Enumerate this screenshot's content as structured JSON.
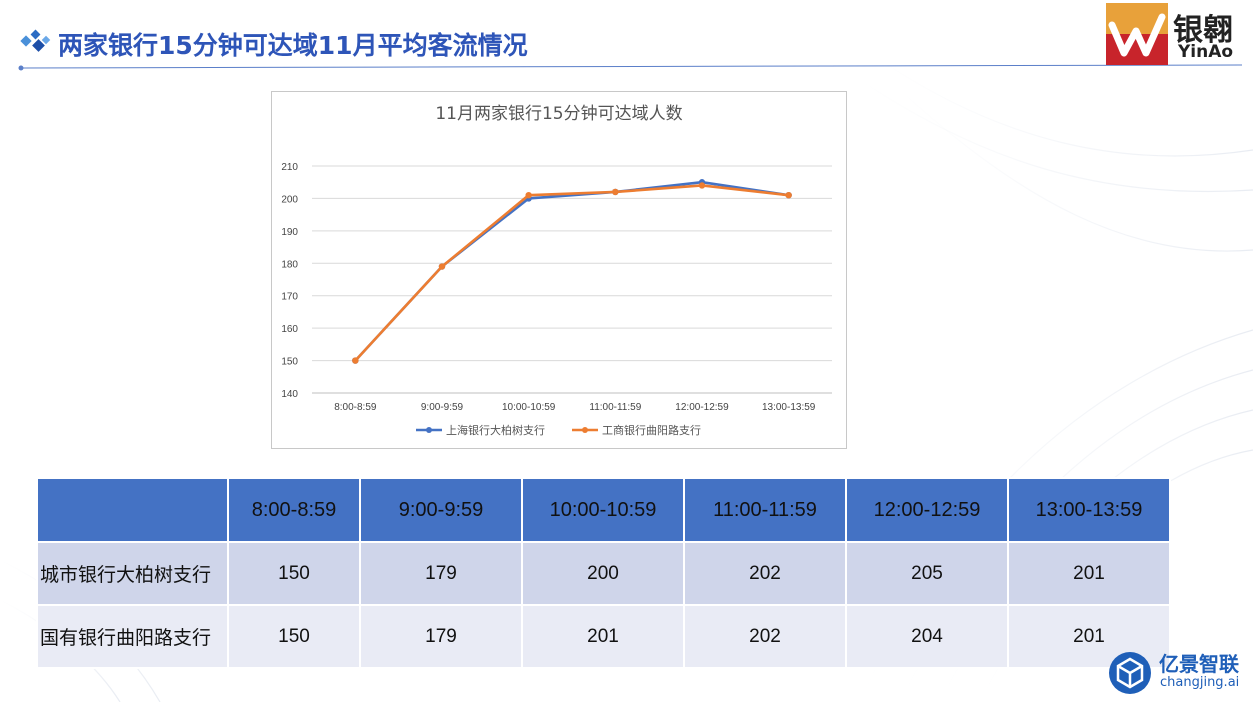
{
  "page": {
    "title": "两家银行15分钟可达域11月平均客流情况"
  },
  "logo_top": {
    "cn": "银翱",
    "en": "YinAo"
  },
  "logo_bottom": {
    "cn": "亿景智联",
    "en": "changjing.ai"
  },
  "colors": {
    "series_1": "#4472c4",
    "series_2": "#ed7d31",
    "table_header": "#4472c4",
    "table_row_a": "#cfd5ea",
    "table_row_b": "#e9ebf5",
    "title_blue": "#2e55b8"
  },
  "chart_data": {
    "type": "line",
    "title": "11月两家银行15分钟可达域人数",
    "categories": [
      "8:00-8:59",
      "9:00-9:59",
      "10:00-10:59",
      "11:00-11:59",
      "12:00-12:59",
      "13:00-13:59"
    ],
    "series": [
      {
        "name": "上海银行大柏树支行",
        "values": [
          150,
          179,
          200,
          202,
          205,
          201
        ]
      },
      {
        "name": "工商银行曲阳路支行",
        "values": [
          150,
          179,
          201,
          202,
          204,
          201
        ]
      }
    ],
    "xlabel": "",
    "ylabel": "",
    "ylim": [
      140,
      210
    ],
    "yticks": [
      140,
      150,
      160,
      170,
      180,
      190,
      200,
      210
    ],
    "grid": true,
    "legend": "bottom"
  },
  "table": {
    "header": [
      "",
      "8:00-8:59",
      "9:00-9:59",
      "10:00-10:59",
      "11:00-11:59",
      "12:00-12:59",
      "13:00-13:59"
    ],
    "rows": [
      {
        "label": "城市银行大柏树支行",
        "values": [
          "150",
          "179",
          "200",
          "202",
          "205",
          "201"
        ]
      },
      {
        "label": "国有银行曲阳路支行",
        "values": [
          "150",
          "179",
          "201",
          "202",
          "204",
          "201"
        ]
      }
    ]
  }
}
